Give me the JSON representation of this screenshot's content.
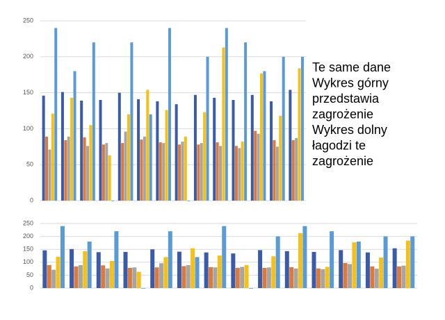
{
  "chart_data": [
    {
      "type": "bar",
      "categories": [
        null,
        null,
        null,
        null,
        null,
        null,
        null,
        null,
        null,
        null,
        null,
        null,
        null,
        null
      ],
      "series": [
        {
          "color": "#3b5ba9",
          "values": [
            146,
            151,
            139,
            140,
            150,
            141,
            138,
            134,
            147,
            143,
            140,
            147,
            138,
            154
          ]
        },
        {
          "color": "#d97a3f",
          "values": [
            89,
            84,
            88,
            78,
            80,
            85,
            81,
            78,
            78,
            81,
            76,
            97,
            84,
            84
          ]
        },
        {
          "color": "#a5a5a5",
          "values": [
            71,
            89,
            76,
            80,
            96,
            89,
            80,
            82,
            80,
            76,
            73,
            93,
            75,
            87
          ]
        },
        {
          "color": "#f4c01b",
          "values": [
            121,
            143,
            105,
            63,
            120,
            154,
            126,
            89,
            123,
            213,
            82,
            177,
            118,
            184
          ]
        },
        {
          "color": "#5b9bd5",
          "values": [
            240,
            180,
            220,
            0,
            220,
            120,
            240,
            0,
            200,
            240,
            220,
            180,
            200,
            200
          ]
        }
      ],
      "ylim": [
        0,
        250
      ],
      "yticks": [
        0,
        50,
        100,
        150,
        200,
        250
      ],
      "grid": true
    },
    {
      "type": "bar",
      "categories": [
        null,
        null,
        null,
        null,
        null,
        null,
        null,
        null,
        null,
        null,
        null,
        null,
        null,
        null
      ],
      "series": [
        {
          "color": "#3b5ba9",
          "values": [
            146,
            151,
            139,
            140,
            150,
            141,
            138,
            134,
            147,
            143,
            140,
            147,
            138,
            154
          ]
        },
        {
          "color": "#d97a3f",
          "values": [
            89,
            84,
            88,
            78,
            80,
            85,
            81,
            78,
            78,
            81,
            76,
            97,
            84,
            84
          ]
        },
        {
          "color": "#a5a5a5",
          "values": [
            71,
            89,
            76,
            80,
            96,
            89,
            80,
            82,
            80,
            76,
            73,
            93,
            75,
            87
          ]
        },
        {
          "color": "#f4c01b",
          "values": [
            121,
            143,
            105,
            63,
            120,
            154,
            126,
            89,
            123,
            213,
            82,
            177,
            118,
            184
          ]
        },
        {
          "color": "#5b9bd5",
          "values": [
            240,
            180,
            220,
            0,
            220,
            120,
            240,
            0,
            200,
            240,
            220,
            180,
            200,
            200
          ]
        }
      ],
      "ylim": [
        0,
        250
      ],
      "yticks": [
        0,
        50,
        100,
        150,
        200,
        250
      ],
      "grid": true
    }
  ],
  "side_text": [
    "Te same dane",
    "Wykres górny",
    "przedstawia",
    "zagrożenie",
    "Wykres dolny",
    "łagodzi te",
    "zagrożenie"
  ]
}
